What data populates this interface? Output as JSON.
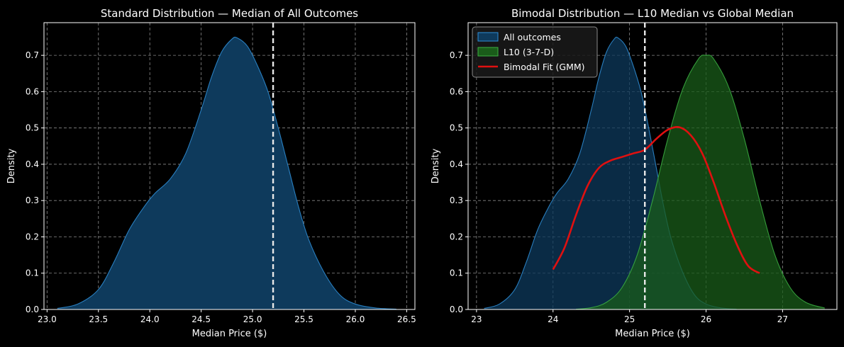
{
  "chart_data": [
    {
      "type": "area",
      "title": "Standard Distribution — Median of All Outcomes",
      "xlabel": "Median Price ($)",
      "ylabel": "Density",
      "xlim": [
        22.97,
        26.58
      ],
      "ylim": [
        0,
        0.79
      ],
      "xticks": [
        23.0,
        23.5,
        24.0,
        24.5,
        25.0,
        25.5,
        26.0,
        26.5
      ],
      "xtick_labels": [
        "23.0",
        "23.5",
        "24.0",
        "24.5",
        "25.0",
        "25.5",
        "26.0",
        "26.5"
      ],
      "yticks": [
        0,
        0.1,
        0.2,
        0.3,
        0.4,
        0.5,
        0.6,
        0.7
      ],
      "ytick_labels": [
        "0.0",
        "0.1",
        "0.2",
        "0.3",
        "0.4",
        "0.5",
        "0.6",
        "0.7"
      ],
      "grid": true,
      "vline": {
        "x": 25.2,
        "style": "dashed",
        "color": "#e8e8e8"
      },
      "series": [
        {
          "name": "All outcomes",
          "color": "#2f8fd8",
          "fill": "#0e3a5c",
          "x": [
            23.1,
            23.3,
            23.5,
            23.65,
            23.8,
            23.95,
            24.05,
            24.2,
            24.35,
            24.5,
            24.6,
            24.7,
            24.8,
            24.85,
            24.95,
            25.05,
            25.15,
            25.25,
            25.35,
            25.45,
            25.55,
            25.7,
            25.85,
            26.0,
            26.2,
            26.4
          ],
          "values": [
            0.003,
            0.015,
            0.055,
            0.13,
            0.22,
            0.285,
            0.32,
            0.36,
            0.43,
            0.55,
            0.64,
            0.71,
            0.745,
            0.748,
            0.725,
            0.67,
            0.6,
            0.5,
            0.39,
            0.28,
            0.19,
            0.1,
            0.04,
            0.015,
            0.004,
            0.001
          ]
        }
      ]
    },
    {
      "type": "area",
      "title": "Bimodal Distribution — L10 Median vs Global Median",
      "xlabel": "Median Price ($)",
      "ylabel": "Density",
      "xlim": [
        22.89,
        27.71
      ],
      "ylim": [
        0,
        0.79
      ],
      "xticks": [
        23,
        24,
        25,
        26,
        27
      ],
      "xtick_labels": [
        "23",
        "24",
        "25",
        "26",
        "27"
      ],
      "yticks": [
        0,
        0.1,
        0.2,
        0.3,
        0.4,
        0.5,
        0.6,
        0.7
      ],
      "ytick_labels": [
        "0.0",
        "0.1",
        "0.2",
        "0.3",
        "0.4",
        "0.5",
        "0.6",
        "0.7"
      ],
      "grid": true,
      "legend": "top-left",
      "vline": {
        "x": 25.2,
        "style": "dashed",
        "color": "#e8e8e8"
      },
      "series": [
        {
          "name": "All outcomes",
          "kind": "area",
          "color": "#2f8fd8",
          "fill": "#0e3a5c",
          "x": [
            23.1,
            23.3,
            23.5,
            23.65,
            23.8,
            23.95,
            24.05,
            24.2,
            24.35,
            24.5,
            24.6,
            24.7,
            24.8,
            24.85,
            24.95,
            25.05,
            25.15,
            25.25,
            25.35,
            25.45,
            25.55,
            25.7,
            25.85,
            26.0,
            26.2,
            26.4
          ],
          "values": [
            0.003,
            0.015,
            0.055,
            0.13,
            0.22,
            0.285,
            0.32,
            0.36,
            0.43,
            0.55,
            0.64,
            0.71,
            0.745,
            0.748,
            0.725,
            0.67,
            0.6,
            0.5,
            0.39,
            0.28,
            0.19,
            0.1,
            0.04,
            0.015,
            0.004,
            0.001
          ]
        },
        {
          "name": "L10 (3-7-D)",
          "kind": "area",
          "color": "#3cb043",
          "fill": "#1a5c1a",
          "x": [
            24.3,
            24.5,
            24.7,
            24.9,
            25.1,
            25.3,
            25.5,
            25.7,
            25.9,
            26.0,
            26.1,
            26.3,
            26.5,
            26.7,
            26.9,
            27.1,
            27.3,
            27.55
          ],
          "values": [
            0.001,
            0.005,
            0.02,
            0.06,
            0.15,
            0.3,
            0.47,
            0.61,
            0.69,
            0.7,
            0.69,
            0.61,
            0.47,
            0.3,
            0.15,
            0.06,
            0.02,
            0.004
          ]
        },
        {
          "name": "Bimodal Fit (GMM)",
          "kind": "line",
          "color": "#e01010",
          "x": [
            24.0,
            24.15,
            24.3,
            24.45,
            24.6,
            24.75,
            24.9,
            25.05,
            25.2,
            25.35,
            25.5,
            25.65,
            25.8,
            25.95,
            26.1,
            26.25,
            26.4,
            26.55,
            26.7
          ],
          "values": [
            0.11,
            0.17,
            0.26,
            0.34,
            0.39,
            0.41,
            0.42,
            0.43,
            0.44,
            0.47,
            0.495,
            0.502,
            0.48,
            0.43,
            0.35,
            0.26,
            0.18,
            0.12,
            0.1
          ]
        }
      ]
    }
  ]
}
